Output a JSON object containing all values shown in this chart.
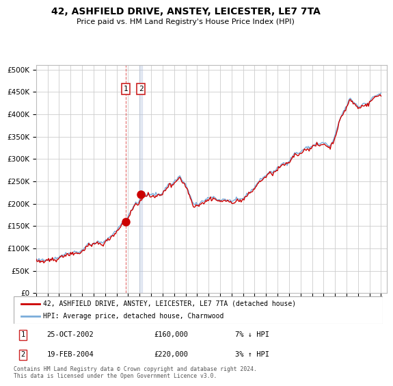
{
  "title": "42, ASHFIELD DRIVE, ANSTEY, LEICESTER, LE7 7TA",
  "subtitle": "Price paid vs. HM Land Registry's House Price Index (HPI)",
  "yticks": [
    0,
    50000,
    100000,
    150000,
    200000,
    250000,
    300000,
    350000,
    400000,
    450000,
    500000
  ],
  "ytick_labels": [
    "£0",
    "£50K",
    "£100K",
    "£150K",
    "£200K",
    "£250K",
    "£300K",
    "£350K",
    "£400K",
    "£450K",
    "£500K"
  ],
  "xmin": 1995.0,
  "xmax": 2025.5,
  "ymin": 0,
  "ymax": 510000,
  "sale1_x": 2002.81,
  "sale1_y": 160000,
  "sale2_x": 2004.12,
  "sale2_y": 220000,
  "sale1_date": "25-OCT-2002",
  "sale1_price": "£160,000",
  "sale1_hpi": "7% ↓ HPI",
  "sale2_date": "19-FEB-2004",
  "sale2_price": "£220,000",
  "sale2_hpi": "3% ↑ HPI",
  "hpi_color": "#7aadda",
  "price_color": "#cc0000",
  "bg_color": "#ffffff",
  "grid_color": "#cccccc",
  "vline1_color": "#dd4444",
  "vline2_color": "#aabbdd",
  "legend_label_price": "42, ASHFIELD DRIVE, ANSTEY, LEICESTER, LE7 7TA (detached house)",
  "legend_label_hpi": "HPI: Average price, detached house, Charnwood",
  "footer": "Contains HM Land Registry data © Crown copyright and database right 2024.\nThis data is licensed under the Open Government Licence v3.0.",
  "hpi_months": [
    1995.0,
    1995.083,
    1995.167,
    1995.25,
    1995.333,
    1995.417,
    1995.5,
    1995.583,
    1995.667,
    1995.75,
    1995.833,
    1995.917,
    1996.0,
    1996.083,
    1996.167,
    1996.25,
    1996.333,
    1996.417,
    1996.5,
    1996.583,
    1996.667,
    1996.75,
    1996.833,
    1996.917,
    1997.0,
    1997.083,
    1997.167,
    1997.25,
    1997.333,
    1997.417,
    1997.5,
    1997.583,
    1997.667,
    1997.75,
    1997.833,
    1997.917,
    1998.0,
    1998.083,
    1998.167,
    1998.25,
    1998.333,
    1998.417,
    1998.5,
    1998.583,
    1998.667,
    1998.75,
    1998.833,
    1998.917,
    1999.0,
    1999.083,
    1999.167,
    1999.25,
    1999.333,
    1999.417,
    1999.5,
    1999.583,
    1999.667,
    1999.75,
    1999.833,
    1999.917,
    2000.0,
    2000.083,
    2000.167,
    2000.25,
    2000.333,
    2000.417,
    2000.5,
    2000.583,
    2000.667,
    2000.75,
    2000.833,
    2000.917,
    2001.0,
    2001.083,
    2001.167,
    2001.25,
    2001.333,
    2001.417,
    2001.5,
    2001.583,
    2001.667,
    2001.75,
    2001.833,
    2001.917,
    2002.0,
    2002.083,
    2002.167,
    2002.25,
    2002.333,
    2002.417,
    2002.5,
    2002.583,
    2002.667,
    2002.75,
    2002.833,
    2002.917,
    2003.0,
    2003.083,
    2003.167,
    2003.25,
    2003.333,
    2003.417,
    2003.5,
    2003.583,
    2003.667,
    2003.75,
    2003.833,
    2003.917,
    2004.0,
    2004.083,
    2004.167,
    2004.25,
    2004.333,
    2004.417,
    2004.5,
    2004.583,
    2004.667,
    2004.75,
    2004.833,
    2004.917,
    2005.0,
    2005.083,
    2005.167,
    2005.25,
    2005.333,
    2005.417,
    2005.5,
    2005.583,
    2005.667,
    2005.75,
    2005.833,
    2005.917,
    2006.0,
    2006.083,
    2006.167,
    2006.25,
    2006.333,
    2006.417,
    2006.5,
    2006.583,
    2006.667,
    2006.75,
    2006.833,
    2006.917,
    2007.0,
    2007.083,
    2007.167,
    2007.25,
    2007.333,
    2007.417,
    2007.5,
    2007.583,
    2007.667,
    2007.75,
    2007.833,
    2007.917,
    2008.0,
    2008.083,
    2008.167,
    2008.25,
    2008.333,
    2008.417,
    2008.5,
    2008.583,
    2008.667,
    2008.75,
    2008.833,
    2008.917,
    2009.0,
    2009.083,
    2009.167,
    2009.25,
    2009.333,
    2009.417,
    2009.5,
    2009.583,
    2009.667,
    2009.75,
    2009.833,
    2009.917,
    2010.0,
    2010.083,
    2010.167,
    2010.25,
    2010.333,
    2010.417,
    2010.5,
    2010.583,
    2010.667,
    2010.75,
    2010.833,
    2010.917,
    2011.0,
    2011.083,
    2011.167,
    2011.25,
    2011.333,
    2011.417,
    2011.5,
    2011.583,
    2011.667,
    2011.75,
    2011.833,
    2011.917,
    2012.0,
    2012.083,
    2012.167,
    2012.25,
    2012.333,
    2012.417,
    2012.5,
    2012.583,
    2012.667,
    2012.75,
    2012.833,
    2012.917,
    2013.0,
    2013.083,
    2013.167,
    2013.25,
    2013.333,
    2013.417,
    2013.5,
    2013.583,
    2013.667,
    2013.75,
    2013.833,
    2013.917,
    2014.0,
    2014.083,
    2014.167,
    2014.25,
    2014.333,
    2014.417,
    2014.5,
    2014.583,
    2014.667,
    2014.75,
    2014.833,
    2014.917,
    2015.0,
    2015.083,
    2015.167,
    2015.25,
    2015.333,
    2015.417,
    2015.5,
    2015.583,
    2015.667,
    2015.75,
    2015.833,
    2015.917,
    2016.0,
    2016.083,
    2016.167,
    2016.25,
    2016.333,
    2016.417,
    2016.5,
    2016.583,
    2016.667,
    2016.75,
    2016.833,
    2016.917,
    2017.0,
    2017.083,
    2017.167,
    2017.25,
    2017.333,
    2017.417,
    2017.5,
    2017.583,
    2017.667,
    2017.75,
    2017.833,
    2017.917,
    2018.0,
    2018.083,
    2018.167,
    2018.25,
    2018.333,
    2018.417,
    2018.5,
    2018.583,
    2018.667,
    2018.75,
    2018.833,
    2018.917,
    2019.0,
    2019.083,
    2019.167,
    2019.25,
    2019.333,
    2019.417,
    2019.5,
    2019.583,
    2019.667,
    2019.75,
    2019.833,
    2019.917,
    2020.0,
    2020.083,
    2020.167,
    2020.25,
    2020.333,
    2020.417,
    2020.5,
    2020.583,
    2020.667,
    2020.75,
    2020.833,
    2020.917,
    2021.0,
    2021.083,
    2021.167,
    2021.25,
    2021.333,
    2021.417,
    2021.5,
    2021.583,
    2021.667,
    2021.75,
    2021.833,
    2021.917,
    2022.0,
    2022.083,
    2022.167,
    2022.25,
    2022.333,
    2022.417,
    2022.5,
    2022.583,
    2022.667,
    2022.75,
    2022.833,
    2022.917,
    2023.0,
    2023.083,
    2023.167,
    2023.25,
    2023.333,
    2023.417,
    2023.5,
    2023.583,
    2023.667,
    2023.75,
    2023.833,
    2023.917,
    2024.0,
    2024.083,
    2024.167,
    2024.25,
    2024.333,
    2024.417,
    2024.5,
    2024.583,
    2024.667,
    2024.75,
    2024.833,
    2024.917,
    2025.0
  ],
  "hpi_values": [
    76000,
    74000,
    73000,
    75000,
    72000,
    74000,
    73000,
    75000,
    72000,
    73000,
    74000,
    75000,
    74000,
    76000,
    75000,
    77000,
    76000,
    78000,
    77000,
    79000,
    78000,
    77000,
    79000,
    80000,
    81000,
    83000,
    82000,
    85000,
    84000,
    86000,
    87000,
    88000,
    87000,
    89000,
    88000,
    90000,
    91000,
    90000,
    92000,
    91000,
    93000,
    92000,
    93000,
    92000,
    91000,
    93000,
    92000,
    94000,
    96000,
    98000,
    100000,
    103000,
    105000,
    107000,
    109000,
    111000,
    110000,
    108000,
    107000,
    109000,
    111000,
    113000,
    112000,
    114000,
    115000,
    114000,
    113000,
    112000,
    114000,
    113000,
    112000,
    114000,
    116000,
    118000,
    120000,
    122000,
    124000,
    126000,
    128000,
    130000,
    132000,
    134000,
    136000,
    138000,
    140000,
    143000,
    146000,
    149000,
    152000,
    155000,
    157000,
    160000,
    162000,
    158000,
    163000,
    168000,
    172000,
    176000,
    180000,
    184000,
    188000,
    192000,
    196000,
    200000,
    204000,
    200000,
    198000,
    202000,
    208000,
    212000,
    215000,
    218000,
    220000,
    222000,
    220000,
    218000,
    220000,
    222000,
    220000,
    218000,
    220000,
    222000,
    221000,
    220000,
    219000,
    222000,
    221000,
    220000,
    222000,
    221000,
    220000,
    222000,
    225000,
    228000,
    231000,
    234000,
    237000,
    240000,
    243000,
    246000,
    244000,
    242000,
    244000,
    246000,
    249000,
    252000,
    254000,
    255000,
    258000,
    260000,
    262000,
    258000,
    254000,
    250000,
    248000,
    246000,
    242000,
    238000,
    234000,
    228000,
    222000,
    216000,
    210000,
    205000,
    200000,
    198000,
    196000,
    200000,
    200000,
    198000,
    200000,
    202000,
    204000,
    206000,
    205000,
    204000,
    206000,
    208000,
    209000,
    210000,
    212000,
    213000,
    215000,
    214000,
    213000,
    215000,
    214000,
    213000,
    212000,
    210000,
    209000,
    208000,
    207000,
    209000,
    208000,
    210000,
    211000,
    210000,
    209000,
    208000,
    207000,
    206000,
    207000,
    206000,
    205000,
    207000,
    206000,
    208000,
    207000,
    209000,
    210000,
    209000,
    208000,
    210000,
    211000,
    210000,
    212000,
    214000,
    216000,
    218000,
    220000,
    222000,
    224000,
    226000,
    228000,
    230000,
    232000,
    234000,
    237000,
    240000,
    243000,
    246000,
    248000,
    251000,
    253000,
    255000,
    257000,
    259000,
    260000,
    261000,
    263000,
    265000,
    267000,
    269000,
    271000,
    273000,
    271000,
    269000,
    271000,
    273000,
    275000,
    277000,
    279000,
    281000,
    283000,
    285000,
    287000,
    289000,
    291000,
    290000,
    289000,
    291000,
    290000,
    292000,
    295000,
    298000,
    301000,
    304000,
    307000,
    310000,
    312000,
    314000,
    313000,
    312000,
    314000,
    313000,
    315000,
    318000,
    320000,
    321000,
    322000,
    324000,
    325000,
    326000,
    325000,
    326000,
    327000,
    326000,
    328000,
    330000,
    331000,
    333000,
    334000,
    335000,
    334000,
    333000,
    332000,
    334000,
    335000,
    336000,
    337000,
    336000,
    335000,
    333000,
    331000,
    329000,
    327000,
    330000,
    333000,
    337000,
    341000,
    345000,
    352000,
    359000,
    366000,
    374000,
    381000,
    388000,
    393000,
    398000,
    403000,
    407000,
    410000,
    413000,
    418000,
    423000,
    428000,
    433000,
    435000,
    432000,
    430000,
    428000,
    426000,
    424000,
    422000,
    420000,
    418000,
    416000,
    417000,
    419000,
    421000,
    423000,
    424000,
    425000,
    424000,
    423000,
    424000,
    425000,
    428000,
    431000,
    434000,
    436000,
    438000,
    440000,
    441000,
    442000,
    443000,
    444000,
    445000,
    446000,
    447000
  ],
  "price_values": [
    73000,
    71000,
    70000,
    72000,
    69000,
    71000,
    70000,
    72000,
    69000,
    70000,
    71000,
    72000,
    71000,
    73000,
    72000,
    74000,
    73000,
    75000,
    74000,
    76000,
    75000,
    74000,
    76000,
    77000,
    78000,
    80000,
    79000,
    82000,
    81000,
    83000,
    84000,
    85000,
    84000,
    86000,
    85000,
    87000,
    88000,
    87000,
    89000,
    88000,
    90000,
    89000,
    90000,
    89000,
    88000,
    90000,
    89000,
    91000,
    93000,
    95000,
    97000,
    100000,
    102000,
    104000,
    106000,
    108000,
    107000,
    105000,
    104000,
    106000,
    108000,
    110000,
    109000,
    111000,
    112000,
    111000,
    110000,
    109000,
    111000,
    110000,
    109000,
    111000,
    113000,
    115000,
    117000,
    119000,
    121000,
    123000,
    125000,
    127000,
    129000,
    131000,
    133000,
    135000,
    137000,
    140000,
    143000,
    146000,
    149000,
    152000,
    154000,
    157000,
    159000,
    155000,
    160000,
    165000,
    169000,
    173000,
    177000,
    181000,
    185000,
    189000,
    193000,
    197000,
    201000,
    197000,
    195000,
    199000,
    205000,
    209000,
    212000,
    215000,
    217000,
    219000,
    217000,
    215000,
    217000,
    219000,
    217000,
    215000,
    217000,
    219000,
    218000,
    217000,
    216000,
    219000,
    218000,
    217000,
    219000,
    218000,
    217000,
    219000,
    222000,
    225000,
    228000,
    231000,
    234000,
    237000,
    240000,
    243000,
    241000,
    239000,
    241000,
    243000,
    246000,
    249000,
    251000,
    252000,
    255000,
    257000,
    259000,
    255000,
    251000,
    247000,
    245000,
    243000,
    239000,
    235000,
    231000,
    225000,
    219000,
    213000,
    207000,
    202000,
    197000,
    195000,
    193000,
    197000,
    197000,
    195000,
    197000,
    199000,
    201000,
    203000,
    202000,
    201000,
    203000,
    205000,
    206000,
    207000,
    209000,
    210000,
    212000,
    211000,
    210000,
    212000,
    211000,
    210000,
    209000,
    207000,
    206000,
    205000,
    204000,
    206000,
    205000,
    207000,
    208000,
    207000,
    206000,
    205000,
    204000,
    203000,
    204000,
    203000,
    202000,
    204000,
    203000,
    205000,
    204000,
    206000,
    207000,
    206000,
    205000,
    207000,
    208000,
    207000,
    209000,
    211000,
    213000,
    215000,
    217000,
    219000,
    221000,
    223000,
    225000,
    227000,
    229000,
    231000,
    234000,
    237000,
    240000,
    243000,
    245000,
    248000,
    250000,
    252000,
    254000,
    256000,
    257000,
    258000,
    260000,
    262000,
    264000,
    266000,
    268000,
    270000,
    268000,
    266000,
    268000,
    270000,
    272000,
    274000,
    276000,
    278000,
    280000,
    282000,
    284000,
    286000,
    288000,
    287000,
    286000,
    288000,
    287000,
    289000,
    292000,
    295000,
    298000,
    301000,
    304000,
    307000,
    309000,
    311000,
    310000,
    309000,
    311000,
    310000,
    312000,
    315000,
    317000,
    318000,
    319000,
    321000,
    322000,
    323000,
    322000,
    323000,
    324000,
    323000,
    325000,
    327000,
    328000,
    330000,
    331000,
    332000,
    331000,
    330000,
    329000,
    331000,
    332000,
    333000,
    334000,
    333000,
    332000,
    330000,
    328000,
    326000,
    324000,
    327000,
    330000,
    334000,
    338000,
    342000,
    349000,
    356000,
    363000,
    371000,
    378000,
    385000,
    390000,
    395000,
    400000,
    404000,
    407000,
    410000,
    415000,
    420000,
    425000,
    430000,
    432000,
    429000,
    427000,
    425000,
    423000,
    421000,
    419000,
    417000,
    415000,
    413000,
    414000,
    416000,
    418000,
    420000,
    421000,
    422000,
    421000,
    420000,
    421000,
    422000,
    425000,
    428000,
    431000,
    433000,
    435000,
    437000,
    438000,
    439000,
    440000,
    441000,
    442000,
    443000,
    444000
  ]
}
